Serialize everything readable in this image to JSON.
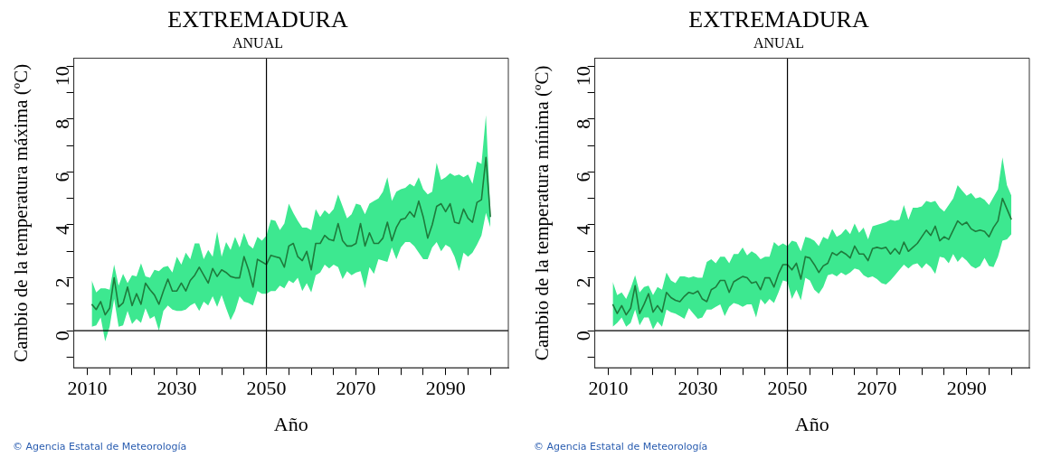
{
  "chart_data": [
    {
      "type": "line",
      "title": "EXTREMADURA",
      "subtitle": "ANUAL",
      "xlabel": "Año",
      "ylabel": "Cambio de la temperatura máxima (ºC)",
      "annotations": [
        "© Agencia Estatal de Meteorología"
      ],
      "x": [
        2011,
        2012,
        2013,
        2014,
        2015,
        2016,
        2017,
        2018,
        2019,
        2020,
        2021,
        2022,
        2023,
        2024,
        2025,
        2026,
        2027,
        2028,
        2029,
        2030,
        2031,
        2032,
        2033,
        2034,
        2035,
        2036,
        2037,
        2038,
        2039,
        2040,
        2041,
        2042,
        2043,
        2044,
        2045,
        2046,
        2047,
        2048,
        2049,
        2050,
        2051,
        2052,
        2053,
        2054,
        2055,
        2056,
        2057,
        2058,
        2059,
        2060,
        2061,
        2062,
        2063,
        2064,
        2065,
        2066,
        2067,
        2068,
        2069,
        2070,
        2071,
        2072,
        2073,
        2074,
        2075,
        2076,
        2077,
        2078,
        2079,
        2080,
        2081,
        2082,
        2083,
        2084,
        2085,
        2086,
        2087,
        2088,
        2089,
        2090,
        2091,
        2092,
        2093,
        2094,
        2095,
        2096,
        2097,
        2098,
        2099,
        2100
      ],
      "series": [
        {
          "color": "#1e7b3c",
          "values": [
            1.0,
            0.8,
            1.1,
            0.6,
            0.85,
            2.0,
            0.9,
            1.05,
            1.65,
            0.95,
            1.4,
            1.0,
            1.8,
            1.55,
            1.35,
            1.0,
            1.5,
            1.95,
            1.5,
            1.5,
            1.8,
            1.5,
            1.9,
            2.1,
            2.4,
            2.1,
            1.8,
            2.35,
            2.05,
            2.3,
            2.2,
            2.05,
            2.0,
            2.0,
            2.8,
            2.3,
            1.65,
            2.7,
            2.6,
            2.5,
            2.85,
            2.8,
            2.75,
            2.4,
            3.2,
            3.3,
            2.8,
            2.65,
            3.0,
            2.3,
            3.3,
            3.3,
            3.6,
            3.45,
            3.4,
            4.05,
            3.4,
            3.2,
            3.2,
            3.3,
            4.05,
            3.2,
            3.7,
            3.3,
            3.3,
            3.5,
            4.1,
            3.4,
            3.9,
            4.2,
            4.25,
            4.5,
            4.3,
            4.9,
            4.3,
            3.5,
            4.0,
            4.7,
            4.8,
            4.5,
            4.8,
            4.1,
            4.05,
            4.6,
            4.25,
            4.1,
            4.85,
            4.95,
            6.55,
            4.3
          ],
          "upper": [
            1.9,
            1.45,
            1.6,
            1.6,
            1.55,
            2.5,
            1.7,
            2.15,
            1.8,
            2.1,
            2.05,
            2.55,
            2.05,
            2.0,
            2.3,
            2.25,
            2.4,
            2.45,
            2.2,
            2.8,
            2.5,
            2.95,
            2.7,
            3.3,
            3.3,
            2.7,
            3.05,
            2.8,
            3.75,
            2.8,
            3.35,
            3.05,
            3.55,
            3.15,
            3.7,
            3.25,
            3.1,
            3.55,
            3.4,
            3.6,
            4.2,
            4.15,
            3.8,
            4.05,
            4.8,
            4.45,
            4.15,
            3.9,
            3.9,
            3.8,
            4.6,
            4.3,
            4.55,
            4.4,
            4.6,
            5.15,
            4.7,
            4.25,
            4.4,
            4.8,
            4.75,
            4.4,
            4.8,
            4.9,
            5.0,
            5.25,
            5.8,
            4.9,
            5.25,
            5.35,
            5.4,
            5.55,
            5.45,
            5.8,
            5.35,
            5.15,
            5.25,
            6.35,
            5.7,
            5.8,
            5.95,
            5.85,
            5.9,
            5.8,
            5.9,
            5.55,
            6.4,
            6.3,
            8.15,
            4.45
          ],
          "lower": [
            0.15,
            0.2,
            0.5,
            -0.4,
            0.15,
            1.2,
            0.15,
            0.2,
            0.75,
            0.25,
            0.45,
            0.3,
            0.85,
            0.45,
            0.55,
            0.0,
            0.75,
            0.95,
            0.8,
            0.75,
            0.75,
            0.8,
            0.95,
            1.05,
            0.75,
            1.1,
            0.95,
            1.3,
            0.9,
            1.35,
            0.85,
            0.4,
            0.75,
            1.3,
            1.1,
            1.05,
            0.95,
            1.5,
            1.4,
            1.4,
            1.5,
            1.5,
            1.7,
            1.6,
            1.9,
            1.8,
            2.0,
            1.5,
            1.8,
            1.45,
            2.1,
            2.2,
            2.5,
            2.35,
            2.5,
            2.4,
            1.95,
            2.25,
            2.1,
            2.2,
            2.25,
            1.6,
            2.4,
            2.15,
            2.7,
            2.65,
            2.6,
            3.15,
            2.7,
            3.15,
            3.35,
            3.35,
            3.2,
            2.95,
            2.7,
            2.7,
            3.15,
            3.35,
            3.0,
            3.25,
            3.15,
            2.8,
            2.25,
            2.95,
            2.8,
            2.95,
            3.25,
            3.6,
            4.45,
            3.9
          ]
        }
      ],
      "xlim": [
        2007,
        2104
      ],
      "xticks": [
        2010,
        {
          "value": 2015,
          "label": null
        },
        {
          "value": 2020,
          "label": null
        },
        {
          "value": 2025,
          "label": null
        },
        2030,
        {
          "value": 2035,
          "label": null
        },
        {
          "value": 2040,
          "label": null
        },
        {
          "value": 2045,
          "label": null
        },
        2050,
        {
          "value": 2055,
          "label": null
        },
        {
          "value": 2060,
          "label": null
        },
        {
          "value": 2065,
          "label": null
        },
        2070,
        {
          "value": 2075,
          "label": null
        },
        {
          "value": 2080,
          "label": null
        },
        {
          "value": 2085,
          "label": null
        },
        2090,
        {
          "value": 2095,
          "label": null
        },
        {
          "value": 2100,
          "label": null
        }
      ],
      "ylim": [
        -1.4,
        10.3
      ],
      "yticks": [
        {
          "value": -1,
          "label": null
        },
        0,
        {
          "value": 1,
          "label": null
        },
        2,
        {
          "value": 3,
          "label": null
        },
        4,
        {
          "value": 5,
          "label": null
        },
        6,
        {
          "value": 7,
          "label": null
        },
        8,
        {
          "value": 9,
          "label": null
        },
        10
      ],
      "ref_lines": [
        {
          "axis": "x",
          "value": 2050,
          "color": "#000000"
        },
        {
          "axis": "y",
          "value": 0,
          "color": "#000000"
        }
      ],
      "marker": "none"
    },
    {
      "type": "line",
      "title": "EXTREMADURA",
      "subtitle": "ANUAL",
      "xlabel": "Año",
      "ylabel": "Cambio de la temperatura mínima (ºC)",
      "annotations": [
        "© Agencia Estatal de Meteorología"
      ],
      "x": [
        2011,
        2012,
        2013,
        2014,
        2015,
        2016,
        2017,
        2018,
        2019,
        2020,
        2021,
        2022,
        2023,
        2024,
        2025,
        2026,
        2027,
        2028,
        2029,
        2030,
        2031,
        2032,
        2033,
        2034,
        2035,
        2036,
        2037,
        2038,
        2039,
        2040,
        2041,
        2042,
        2043,
        2044,
        2045,
        2046,
        2047,
        2048,
        2049,
        2050,
        2051,
        2052,
        2053,
        2054,
        2055,
        2056,
        2057,
        2058,
        2059,
        2060,
        2061,
        2062,
        2063,
        2064,
        2065,
        2066,
        2067,
        2068,
        2069,
        2070,
        2071,
        2072,
        2073,
        2074,
        2075,
        2076,
        2077,
        2078,
        2079,
        2080,
        2081,
        2082,
        2083,
        2084,
        2085,
        2086,
        2087,
        2088,
        2089,
        2090,
        2091,
        2092,
        2093,
        2094,
        2095,
        2096,
        2097,
        2098,
        2099,
        2100
      ],
      "series": [
        {
          "color": "#1e7b3c",
          "values": [
            1.0,
            0.65,
            0.95,
            0.6,
            0.85,
            1.7,
            0.65,
            1.0,
            1.4,
            0.7,
            0.95,
            0.7,
            1.45,
            1.25,
            1.15,
            1.1,
            1.3,
            1.45,
            1.4,
            1.5,
            1.2,
            1.1,
            1.55,
            1.65,
            1.9,
            1.9,
            1.45,
            1.85,
            1.95,
            2.05,
            2.0,
            1.8,
            1.85,
            1.55,
            2.0,
            2.0,
            1.65,
            2.15,
            2.5,
            2.5,
            2.3,
            2.55,
            1.95,
            2.8,
            2.75,
            2.5,
            2.2,
            2.45,
            2.55,
            2.95,
            2.85,
            3.0,
            2.9,
            2.75,
            3.2,
            2.9,
            2.9,
            2.65,
            3.1,
            3.15,
            3.1,
            3.15,
            2.9,
            3.1,
            2.9,
            3.35,
            3.0,
            3.15,
            3.3,
            3.55,
            3.8,
            3.6,
            3.95,
            3.4,
            3.55,
            3.45,
            3.8,
            4.15,
            4.0,
            4.1,
            3.85,
            3.75,
            3.8,
            3.75,
            3.55,
            3.9,
            4.15,
            5.0,
            4.6,
            4.2
          ],
          "upper": [
            1.85,
            1.35,
            1.45,
            1.2,
            1.6,
            2.1,
            1.45,
            1.65,
            1.7,
            1.35,
            1.65,
            1.55,
            2.2,
            1.9,
            1.8,
            2.05,
            2.05,
            2.0,
            2.05,
            2.0,
            2.0,
            2.6,
            2.7,
            2.55,
            2.8,
            2.8,
            2.55,
            2.9,
            2.9,
            3.15,
            2.85,
            3.0,
            2.9,
            2.7,
            2.8,
            2.8,
            3.35,
            3.2,
            3.3,
            3.2,
            3.4,
            3.35,
            3.0,
            3.55,
            3.5,
            3.4,
            3.2,
            3.55,
            3.45,
            3.85,
            3.55,
            3.65,
            3.85,
            3.65,
            4.05,
            3.7,
            3.9,
            3.45,
            3.95,
            4.0,
            4.05,
            4.1,
            4.2,
            4.15,
            4.2,
            4.75,
            4.2,
            4.65,
            4.65,
            4.7,
            4.9,
            4.85,
            4.9,
            4.65,
            4.5,
            4.75,
            5.0,
            5.5,
            5.3,
            5.1,
            5.2,
            5.0,
            5.05,
            4.95,
            4.75,
            5.05,
            5.35,
            6.55,
            5.5,
            5.1
          ],
          "lower": [
            0.15,
            0.3,
            0.5,
            0.15,
            0.3,
            0.8,
            0.2,
            0.5,
            0.5,
            0.05,
            0.35,
            0.15,
            0.8,
            0.7,
            0.65,
            0.55,
            0.45,
            0.85,
            0.65,
            0.45,
            0.5,
            0.8,
            0.8,
            0.9,
            1.0,
            0.55,
            0.9,
            1.05,
            1.0,
            0.9,
            1.0,
            1.0,
            0.5,
            1.2,
            1.0,
            1.2,
            1.05,
            1.45,
            1.9,
            1.85,
            1.2,
            1.55,
            1.15,
            2.0,
            1.9,
            1.55,
            1.4,
            1.65,
            2.1,
            2.15,
            2.05,
            2.2,
            2.1,
            2.2,
            2.35,
            2.3,
            2.1,
            2.0,
            2.05,
            1.95,
            1.8,
            1.75,
            1.9,
            2.1,
            2.3,
            2.5,
            2.35,
            2.5,
            2.55,
            2.35,
            2.55,
            2.4,
            2.15,
            2.8,
            2.75,
            2.55,
            2.9,
            2.6,
            2.8,
            2.65,
            2.45,
            2.35,
            2.45,
            2.75,
            2.45,
            2.4,
            2.8,
            3.4,
            3.45,
            3.65
          ]
        }
      ],
      "xlim": [
        2007,
        2104
      ],
      "xticks": [
        2010,
        {
          "value": 2015,
          "label": null
        },
        {
          "value": 2020,
          "label": null
        },
        {
          "value": 2025,
          "label": null
        },
        2030,
        {
          "value": 2035,
          "label": null
        },
        {
          "value": 2040,
          "label": null
        },
        {
          "value": 2045,
          "label": null
        },
        2050,
        {
          "value": 2055,
          "label": null
        },
        {
          "value": 2060,
          "label": null
        },
        {
          "value": 2065,
          "label": null
        },
        2070,
        {
          "value": 2075,
          "label": null
        },
        {
          "value": 2080,
          "label": null
        },
        {
          "value": 2085,
          "label": null
        },
        2090,
        {
          "value": 2095,
          "label": null
        },
        {
          "value": 2100,
          "label": null
        }
      ],
      "ylim": [
        -1.4,
        10.3
      ],
      "yticks": [
        {
          "value": -1,
          "label": null
        },
        0,
        {
          "value": 1,
          "label": null
        },
        2,
        {
          "value": 3,
          "label": null
        },
        4,
        {
          "value": 5,
          "label": null
        },
        6,
        {
          "value": 7,
          "label": null
        },
        8,
        {
          "value": 9,
          "label": null
        },
        10
      ],
      "ref_lines": [
        {
          "axis": "x",
          "value": 2050,
          "color": "#000000"
        },
        {
          "axis": "y",
          "value": 0,
          "color": "#000000"
        }
      ],
      "marker": "none"
    }
  ]
}
